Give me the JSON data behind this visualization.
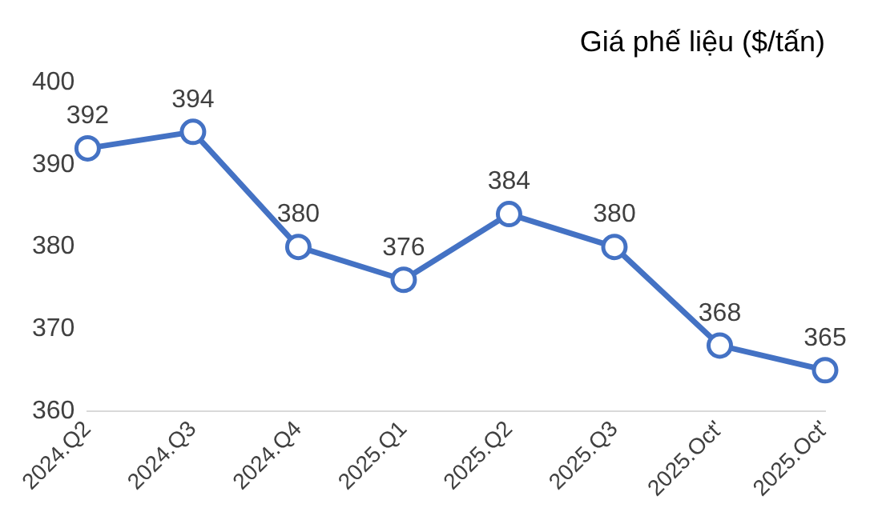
{
  "chart_data": {
    "type": "line",
    "title": "Giá phế liệu ($/tấn)",
    "categories": [
      "2024.Q2",
      "2024.Q3",
      "2024.Q4",
      "2025.Q1",
      "2025.Q2",
      "2025.Q3",
      "2025.Oct'",
      "2025.Oct'"
    ],
    "series": [
      {
        "color": "#4472c4",
        "values": [
          392,
          394,
          380,
          376,
          384,
          380,
          368,
          365
        ]
      }
    ],
    "ylim": [
      360,
      400
    ],
    "yticks": [
      360,
      370,
      380,
      390,
      400
    ],
    "grid": false,
    "legend": false,
    "marker": "circle",
    "line_style": "solid",
    "data_labels": true
  }
}
